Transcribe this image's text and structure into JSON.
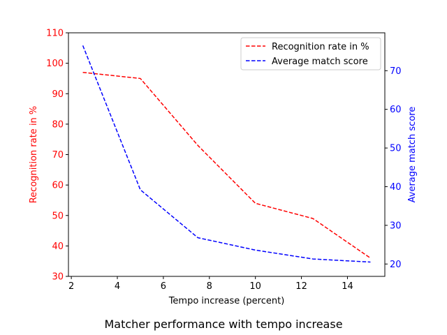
{
  "chart_data": {
    "type": "line",
    "caption": "Matcher performance with tempo increase",
    "xlabel": "Tempo increase (percent)",
    "xlim": [
      1.875,
      15.625
    ],
    "x_ticks": [
      2,
      4,
      6,
      8,
      10,
      12,
      14
    ],
    "y_left": {
      "label": "Recognition rate in %",
      "color": "#ff0000",
      "lim": [
        30,
        110
      ],
      "ticks": [
        30,
        40,
        50,
        60,
        70,
        80,
        90,
        100,
        110
      ]
    },
    "y_right": {
      "label": "Average match score",
      "color": "#0000ff",
      "lim": [
        16.8,
        79.8
      ],
      "ticks": [
        20,
        30,
        40,
        50,
        60,
        70
      ]
    },
    "series": [
      {
        "name": "Recognition rate in %",
        "axis": "left",
        "color": "#ff0000",
        "style": "dashed",
        "x": [
          2.5,
          5,
          7.5,
          10,
          12.5,
          15
        ],
        "y": [
          97,
          95,
          73,
          54,
          49,
          36
        ]
      },
      {
        "name": "Average match score",
        "axis": "right",
        "color": "#0000ff",
        "style": "dashed",
        "x": [
          2.5,
          5,
          7.5,
          10,
          12.5,
          15
        ],
        "y": [
          76.5,
          39.2,
          26.8,
          23.6,
          21.3,
          20.5
        ]
      }
    ],
    "legend_position": "top-right",
    "grid": false
  }
}
